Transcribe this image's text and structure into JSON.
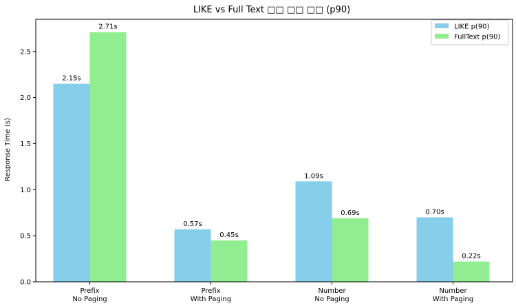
{
  "chart_data": {
    "type": "bar",
    "title": "LIKE vs Full Text □□ □□ □□ (p90)",
    "xlabel": "",
    "ylabel": "Response Time (s)",
    "ylim": [
      0,
      2.85
    ],
    "yticks": [
      0.0,
      0.5,
      1.0,
      1.5,
      2.0,
      2.5
    ],
    "ytick_labels": [
      "0.0",
      "0.5",
      "1.0",
      "1.5",
      "2.0",
      "2.5"
    ],
    "categories": [
      [
        "Prefix",
        "No Paging"
      ],
      [
        "Prefix",
        "With Paging"
      ],
      [
        "Number",
        "No Paging"
      ],
      [
        "Number",
        "With Paging"
      ]
    ],
    "series": [
      {
        "name": "LIKE p(90)",
        "color": "#87CEEB",
        "values": [
          2.15,
          0.57,
          1.09,
          0.7
        ],
        "labels": [
          "2.15s",
          "0.57s",
          "1.09s",
          "0.70s"
        ]
      },
      {
        "name": "FullText p(90)",
        "color": "#90EE90",
        "values": [
          2.71,
          0.45,
          0.69,
          0.22
        ],
        "labels": [
          "2.71s",
          "0.45s",
          "0.69s",
          "0.22s"
        ]
      }
    ],
    "legend_position": "top-right",
    "grid": false
  }
}
